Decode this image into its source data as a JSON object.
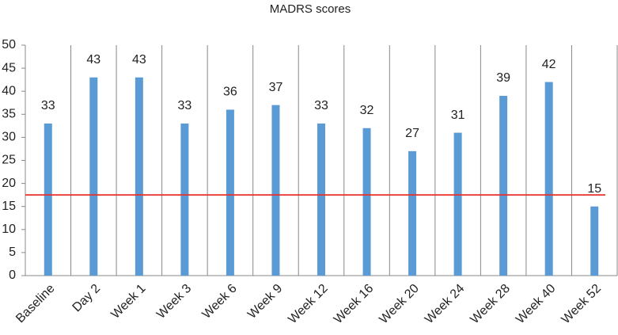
{
  "chart_data": {
    "type": "bar",
    "title": "MADRS scores",
    "categories": [
      "Baseline",
      "Day 2",
      "Week 1",
      "Week 3",
      "Week 6",
      "Week 9",
      "Week 12",
      "Week 16",
      "Week 20",
      "Week 24",
      "Week 28",
      "Week 40",
      "Week 52"
    ],
    "values": [
      33,
      43,
      43,
      33,
      36,
      37,
      33,
      32,
      27,
      31,
      39,
      42,
      15
    ],
    "color": "#5b9bd5",
    "ylim": [
      0,
      50
    ],
    "yticks": [
      0,
      5,
      10,
      15,
      20,
      25,
      30,
      35,
      40,
      45,
      50
    ],
    "xgrid": true,
    "reference_line": {
      "value": 17.5,
      "color": "#e8302a"
    }
  }
}
